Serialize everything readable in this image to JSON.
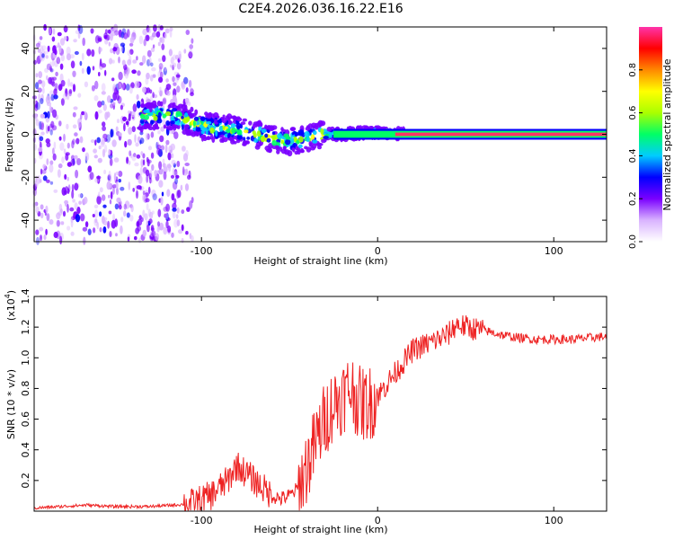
{
  "chart_data": [
    {
      "type": "heatmap",
      "title": "C2E4.2026.036.16.22.E16",
      "xlabel": "Height of straight line (km)",
      "ylabel": "Frequency (Hz)",
      "xlim": [
        -195,
        130
      ],
      "ylim": [
        -50,
        50
      ],
      "x_ticks": [
        -100,
        0,
        100
      ],
      "y_ticks": [
        -40,
        -20,
        0,
        20,
        40
      ],
      "colorbar": {
        "label": "Normalized spectral amplitude",
        "range": [
          0,
          1
        ],
        "ticks": [
          "0.0",
          "0.2",
          "0.4",
          "0.6",
          "0.8"
        ],
        "tick_values": [
          0.0,
          0.2,
          0.4,
          0.6,
          0.8
        ],
        "colors": [
          "#ffffff",
          "#d9b3ff",
          "#7a00ff",
          "#0000ff",
          "#00ccff",
          "#00ff66",
          "#aaff00",
          "#ffff00",
          "#ff8800",
          "#ff0000",
          "#ff33aa"
        ]
      },
      "ridge": {
        "description": "Frequency ridge: scattered noise before -110 km, ~+8 Hz near -120 km drifting to 0 Hz by -25 km, narrow line at 0 Hz to 130 km",
        "points": [
          {
            "x": -135,
            "y": 8
          },
          {
            "x": -120,
            "y": 9
          },
          {
            "x": -110,
            "y": 7
          },
          {
            "x": -100,
            "y": 4
          },
          {
            "x": -90,
            "y": 3
          },
          {
            "x": -80,
            "y": 2
          },
          {
            "x": -70,
            "y": 0
          },
          {
            "x": -60,
            "y": -2
          },
          {
            "x": -50,
            "y": -3
          },
          {
            "x": -40,
            "y": -2
          },
          {
            "x": -30,
            "y": 0
          },
          {
            "x": -20,
            "y": 0
          },
          {
            "x": 0,
            "y": 1
          },
          {
            "x": 10,
            "y": 0
          },
          {
            "x": 130,
            "y": 0
          }
        ]
      }
    },
    {
      "type": "line",
      "title": "",
      "xlabel": "Height of straight line (km)",
      "ylabel": "SNR (10 * v/v)",
      "y_multiplier": "(x10",
      "y_multiplier_exp": "4",
      "y_multiplier_close": ")",
      "xlim": [
        -195,
        130
      ],
      "ylim": [
        0,
        1.4
      ],
      "x_ticks": [
        -100,
        0,
        100
      ],
      "y_ticks": [
        "0.2",
        "0.4",
        "0.6",
        "0.8",
        "1.0",
        "1.2",
        "1.4"
      ],
      "y_tick_values": [
        0.2,
        0.4,
        0.6,
        0.8,
        1.0,
        1.2,
        1.4
      ],
      "series": [
        {
          "name": "SNR",
          "color": "#ee2222",
          "x": [
            -195,
            -180,
            -165,
            -150,
            -130,
            -115,
            -105,
            -95,
            -85,
            -80,
            -75,
            -70,
            -65,
            -60,
            -55,
            -50,
            -45,
            -40,
            -35,
            -30,
            -25,
            -20,
            -15,
            -10,
            -5,
            0,
            10,
            20,
            30,
            40,
            45,
            50,
            60,
            70,
            80,
            90,
            100,
            110,
            120,
            130
          ],
          "values": [
            0.02,
            0.03,
            0.04,
            0.03,
            0.03,
            0.04,
            0.05,
            0.1,
            0.2,
            0.3,
            0.25,
            0.2,
            0.15,
            0.1,
            0.08,
            0.1,
            0.15,
            0.3,
            0.45,
            0.6,
            0.7,
            0.75,
            0.8,
            0.7,
            0.7,
            0.75,
            0.9,
            1.05,
            1.1,
            1.15,
            1.22,
            1.2,
            1.18,
            1.15,
            1.13,
            1.12,
            1.12,
            1.12,
            1.13,
            1.14
          ]
        }
      ]
    }
  ]
}
